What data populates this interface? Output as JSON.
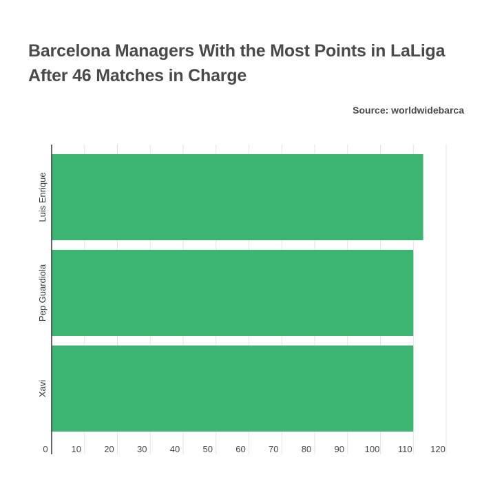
{
  "header": {
    "title_line1": "Barcelona Managers With the Most Points in LaLiga",
    "title_line2": "After 46 Matches in Charge",
    "source": "Source: worldwidebarca"
  },
  "colors": {
    "bar": "#3db572",
    "grid": "#e3e3e3",
    "axis": "#333333"
  },
  "chart_data": {
    "type": "bar",
    "orientation": "horizontal",
    "title": "Barcelona Managers With the Most Points in LaLiga After 46 Matches in Charge",
    "categories": [
      "Luis Enrique",
      "Pep Guardiola",
      "Xavi"
    ],
    "values": [
      113,
      110,
      110
    ],
    "xlim": [
      0,
      120
    ],
    "xticks": [
      0,
      10,
      20,
      30,
      40,
      50,
      60,
      70,
      80,
      90,
      100,
      110,
      120
    ],
    "grid": true,
    "legend": "none"
  }
}
